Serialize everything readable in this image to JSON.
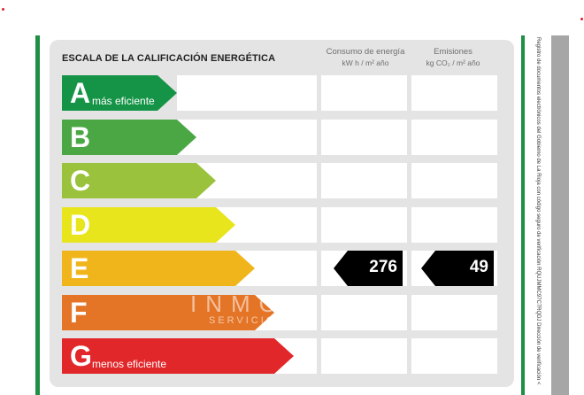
{
  "title": "ESCALA DE LA CALIFICACIÓN ENERGÉTICA",
  "columns": [
    {
      "label": "Consumo de energía",
      "unit": "kW h / m² año"
    },
    {
      "label": "Emisiones",
      "unit": "kg CO₂ / m² año"
    }
  ],
  "ratings": [
    {
      "letter": "A",
      "desc": "más eficiente",
      "color": "#159447"
    },
    {
      "letter": "B",
      "desc": "",
      "color": "#4aa744"
    },
    {
      "letter": "C",
      "desc": "",
      "color": "#9ac23c"
    },
    {
      "letter": "D",
      "desc": "",
      "color": "#e8e51c"
    },
    {
      "letter": "E",
      "desc": "",
      "color": "#f1b51c"
    },
    {
      "letter": "F",
      "desc": "",
      "color": "#e47426"
    },
    {
      "letter": "G",
      "desc": "menos eficiente",
      "color": "#e2272a"
    }
  ],
  "current": {
    "rating": "E",
    "consumption": "276",
    "emissions": "49"
  },
  "side_note": "Registro de documentos electrónicos del Gobierno de La Rioja con código seguro de verificación RQUJMMC97C7RQDJ Dirección de verificación <",
  "watermark": {
    "brand": "INMOBILIA",
    "tagline": "SERVICIOS"
  }
}
